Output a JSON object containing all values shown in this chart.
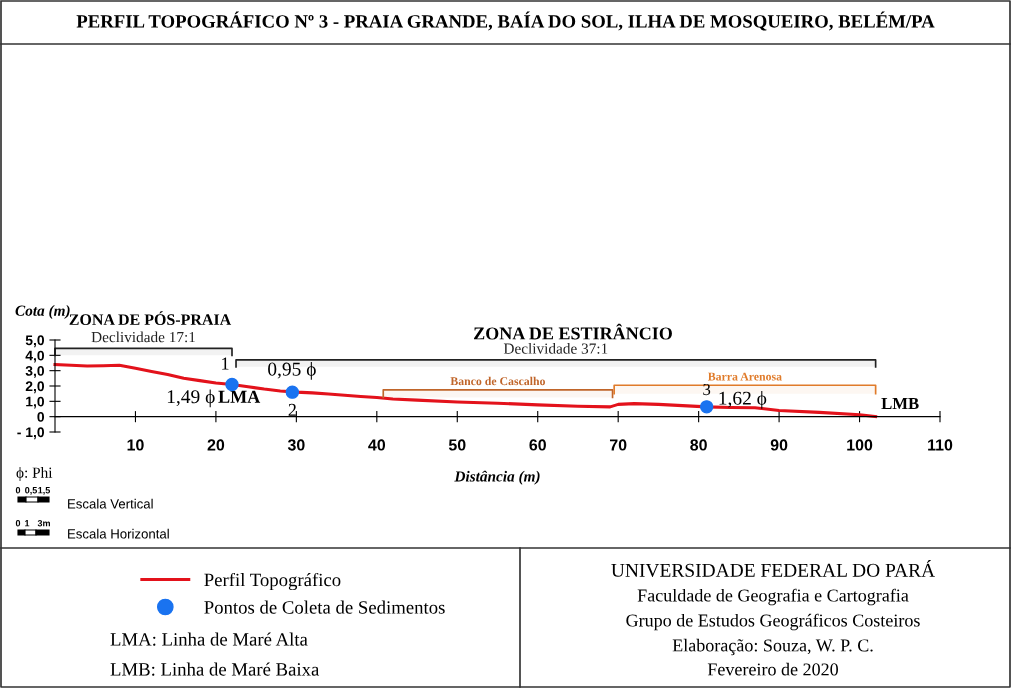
{
  "chart_data": {
    "type": "line",
    "title": "PERFIL TOPOGRÁFICO Nº 3 - PRAIA GRANDE, BAÍA DO SOL, ILHA DE MOSQUEIRO, BELÉM/PA",
    "xlabel": "Distância (m)",
    "ylabel": "Cota (m)",
    "xlim": [
      0,
      110
    ],
    "xticks": [
      10,
      20,
      30,
      40,
      50,
      60,
      70,
      80,
      90,
      100,
      110
    ],
    "ylim": [
      -1,
      5
    ],
    "yticks": [
      {
        "value": 5,
        "label": "5,0"
      },
      {
        "value": 4,
        "label": "4,0"
      },
      {
        "value": 3,
        "label": "3,0"
      },
      {
        "value": 2,
        "label": "2,0"
      },
      {
        "value": 1,
        "label": "1,0"
      },
      {
        "value": 0,
        "label": "0"
      },
      {
        "value": -1,
        "label": "- 1,0"
      }
    ],
    "grid": false,
    "legend": "bottom",
    "marker": "none",
    "line_style": "solid",
    "series": [
      {
        "name": "Perfil Topográfico",
        "color": "#e3121b",
        "x": [
          0,
          2,
          4,
          6,
          8,
          10,
          12,
          14,
          16,
          18,
          20,
          22,
          24,
          26,
          28,
          30,
          32,
          34,
          36,
          38,
          40,
          42,
          45,
          50,
          55,
          60,
          65,
          69,
          70,
          72,
          75,
          78,
          81,
          84,
          87,
          90,
          95,
          100,
          102
        ],
        "values": [
          3.4,
          3.35,
          3.3,
          3.32,
          3.35,
          3.15,
          2.95,
          2.75,
          2.5,
          2.35,
          2.2,
          2.1,
          1.95,
          1.8,
          1.68,
          1.6,
          1.55,
          1.48,
          1.4,
          1.32,
          1.25,
          1.15,
          1.08,
          0.96,
          0.88,
          0.77,
          0.68,
          0.64,
          0.8,
          0.85,
          0.8,
          0.72,
          0.64,
          0.6,
          0.58,
          0.4,
          0.28,
          0.13,
          0
        ]
      },
      {
        "name": "Pontos de Coleta de Sedimentos",
        "type": "scatter",
        "color": "#1a73f0",
        "marker": "circle",
        "x": [
          22,
          29.5,
          81
        ],
        "values": [
          2.1,
          1.6,
          0.64
        ]
      }
    ],
    "bands": [
      {
        "axis": "x",
        "from": 0,
        "to": 22,
        "label": "Declividade 17:1",
        "color": "#222222"
      },
      {
        "axis": "x",
        "from": 22.5,
        "to": 102,
        "label": "Declividade 37:1",
        "color": "#222222"
      },
      {
        "axis": "x",
        "from": 40.8,
        "to": 69.3,
        "label": "Banco de Cascalho",
        "color": "#c0652a"
      },
      {
        "axis": "x",
        "from": 69.5,
        "to": 102,
        "label": "Barra Arenosa",
        "color": "#e07b2a"
      }
    ],
    "annotations": [
      "ZONA DE PÓS-PRAIA",
      "ZONA DE ESTIRÂNCIO",
      {
        "text": "1",
        "x": 22,
        "y": 2.1
      },
      {
        "text": "1,49 ϕ",
        "x": 22,
        "y": 2.1
      },
      {
        "text": "LMA",
        "x": 22,
        "y": 2.1
      },
      {
        "text": "0,95 ϕ",
        "x": 29.5,
        "y": 1.6
      },
      {
        "text": "2",
        "x": 29.5,
        "y": 1.6
      },
      {
        "text": "3",
        "x": 81,
        "y": 0.64
      },
      {
        "text": "1,62 ϕ",
        "x": 81,
        "y": 0.64
      },
      {
        "text": "LMB",
        "x": 102,
        "y": 0
      },
      "ϕ: Phi",
      "0",
      "0,5",
      "1,5",
      "Escala Vertical",
      "0",
      "1",
      "3m",
      "Escala Horizontal",
      "LMA: Linha de Maré Alta",
      "LMB: Linha de Maré Baixa",
      "UNIVERSIDADE FEDERAL DO PARÁ",
      "Faculdade de Geografia e Cartografia",
      "Grupo de Estudos Geográficos Costeiros",
      "Elaboração: Souza, W. P. C.",
      "Fevereiro de 2020"
    ]
  }
}
